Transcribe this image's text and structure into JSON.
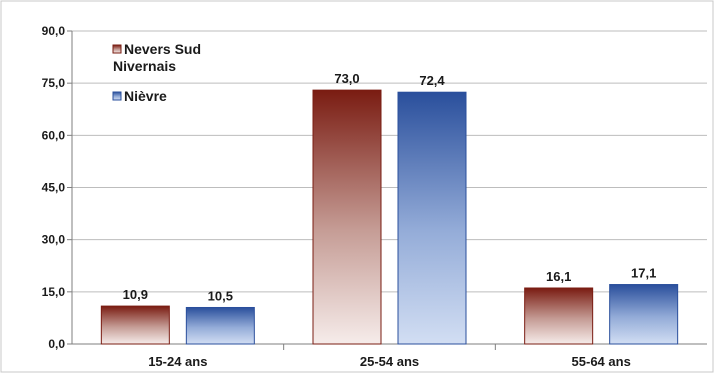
{
  "chart_data": {
    "type": "bar",
    "categories": [
      "15-24 ans",
      "25-54 ans",
      "55-64 ans"
    ],
    "series": [
      {
        "name": "Nevers Sud Nivernais",
        "values": [
          10.9,
          73.0,
          16.1
        ],
        "color": "#7a1c12",
        "value_labels": [
          "10,9",
          "73,0",
          "16,1"
        ]
      },
      {
        "name": "Nièvre",
        "values": [
          10.5,
          72.4,
          17.1
        ],
        "color": "#2a4f9c",
        "value_labels": [
          "10,5",
          "72,4",
          "17,1"
        ]
      }
    ],
    "ylim": [
      0,
      90
    ],
    "yticks": [
      0,
      15,
      30,
      45,
      60,
      75,
      90
    ],
    "ytick_labels": [
      "0,0",
      "15,0",
      "30,0",
      "45,0",
      "60,0",
      "75,0",
      "90,0"
    ],
    "grid": true,
    "legend_position": "top-left"
  },
  "legend": {
    "series1_line1": "Nevers Sud",
    "series1_line2": "Nivernais",
    "series2": "Nièvre"
  }
}
